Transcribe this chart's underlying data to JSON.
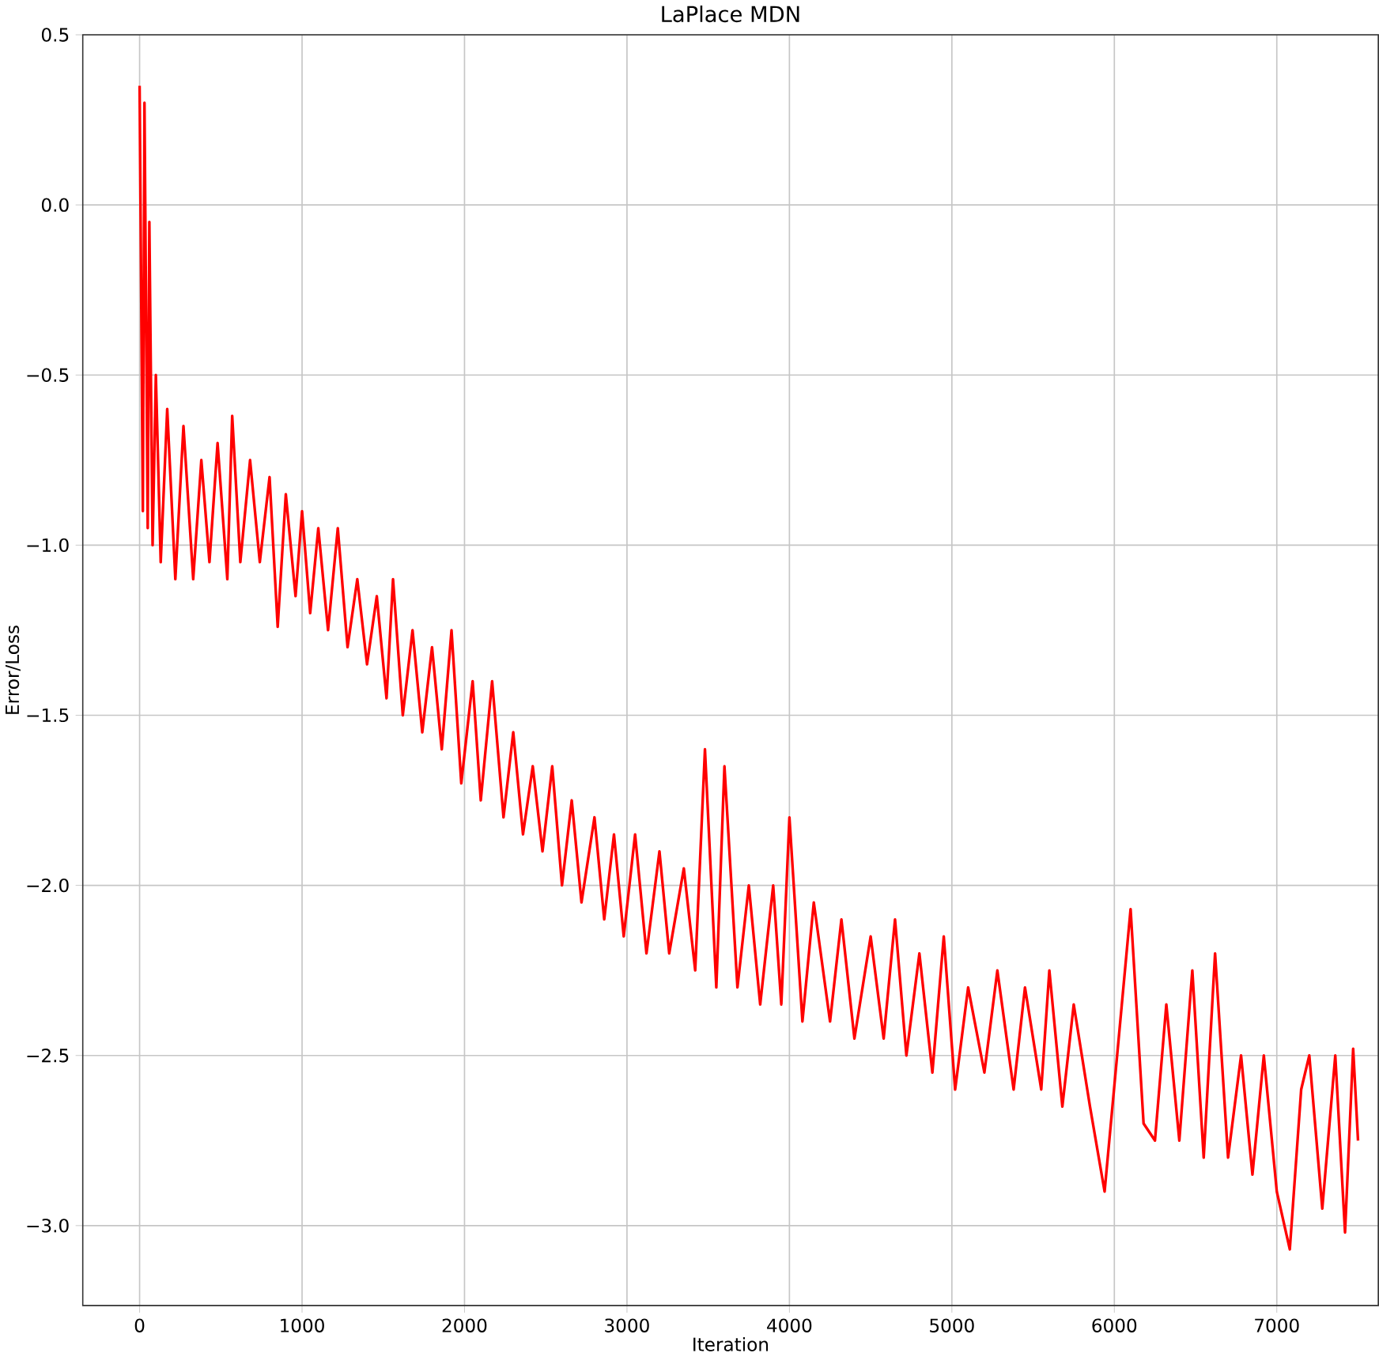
{
  "chart_data": {
    "type": "line",
    "title": "LaPlace MDN",
    "xlabel": "Iteration",
    "ylabel": "Error/Loss",
    "x": [
      0,
      20,
      30,
      50,
      60,
      80,
      100,
      130,
      170,
      220,
      270,
      330,
      380,
      430,
      480,
      540,
      570,
      620,
      680,
      740,
      800,
      850,
      900,
      960,
      1000,
      1050,
      1100,
      1160,
      1220,
      1280,
      1340,
      1400,
      1460,
      1520,
      1560,
      1620,
      1680,
      1740,
      1800,
      1860,
      1920,
      1980,
      2050,
      2100,
      2170,
      2240,
      2300,
      2360,
      2420,
      2480,
      2540,
      2600,
      2660,
      2720,
      2800,
      2860,
      2920,
      2980,
      3050,
      3120,
      3200,
      3260,
      3350,
      3420,
      3480,
      3550,
      3600,
      3680,
      3750,
      3820,
      3900,
      3950,
      4000,
      4080,
      4150,
      4250,
      4320,
      4400,
      4500,
      4580,
      4650,
      4720,
      4800,
      4880,
      4950,
      5020,
      5100,
      5200,
      5280,
      5380,
      5450,
      5550,
      5600,
      5680,
      5750,
      5850,
      5940,
      6100,
      6180,
      6250,
      6320,
      6400,
      6480,
      6550,
      6620,
      6700,
      6780,
      6850,
      6920,
      7000,
      7080,
      7150,
      7200,
      7280,
      7360,
      7420,
      7470,
      7500
    ],
    "series": [
      {
        "color": "#ff0000",
        "values": [
          0.35,
          -0.9,
          0.3,
          -0.95,
          -0.05,
          -1.0,
          -0.5,
          -1.05,
          -0.6,
          -1.1,
          -0.65,
          -1.1,
          -0.75,
          -1.05,
          -0.7,
          -1.1,
          -0.62,
          -1.05,
          -0.75,
          -1.05,
          -0.8,
          -1.24,
          -0.85,
          -1.15,
          -0.9,
          -1.2,
          -0.95,
          -1.25,
          -0.95,
          -1.3,
          -1.1,
          -1.35,
          -1.15,
          -1.45,
          -1.1,
          -1.5,
          -1.25,
          -1.55,
          -1.3,
          -1.6,
          -1.25,
          -1.7,
          -1.4,
          -1.75,
          -1.4,
          -1.8,
          -1.55,
          -1.85,
          -1.65,
          -1.9,
          -1.65,
          -2.0,
          -1.75,
          -2.05,
          -1.8,
          -2.1,
          -1.85,
          -2.15,
          -1.85,
          -2.2,
          -1.9,
          -2.2,
          -1.95,
          -2.25,
          -1.6,
          -2.3,
          -1.65,
          -2.3,
          -2.0,
          -2.35,
          -2.0,
          -2.35,
          -1.8,
          -2.4,
          -2.05,
          -2.4,
          -2.1,
          -2.45,
          -2.15,
          -2.45,
          -2.1,
          -2.5,
          -2.2,
          -2.55,
          -2.15,
          -2.6,
          -2.3,
          -2.55,
          -2.25,
          -2.6,
          -2.3,
          -2.6,
          -2.25,
          -2.65,
          -2.35,
          -2.65,
          -2.9,
          -2.07,
          -2.7,
          -2.75,
          -2.35,
          -2.75,
          -2.25,
          -2.8,
          -2.2,
          -2.8,
          -2.5,
          -2.85,
          -2.5,
          -2.9,
          -3.07,
          -2.6,
          -2.5,
          -2.95,
          -2.5,
          -3.02,
          -2.48,
          -2.75
        ]
      }
    ],
    "xlim": [
      -350,
      7625
    ],
    "ylim": [
      -3.235,
      0.5
    ],
    "xticks": [
      0,
      1000,
      2000,
      3000,
      4000,
      5000,
      6000,
      7000
    ],
    "yticks": [
      {
        "value": -3.0,
        "label": "−3.0"
      },
      {
        "value": -2.5,
        "label": "−2.5"
      },
      {
        "value": -2.0,
        "label": "−2.0"
      },
      {
        "value": -1.5,
        "label": "−1.5"
      },
      {
        "value": -1.0,
        "label": "−1.0"
      },
      {
        "value": -0.5,
        "label": "−0.5"
      },
      {
        "value": 0.0,
        "label": "0.0"
      },
      {
        "value": 0.5,
        "label": "0.5"
      }
    ],
    "grid": true,
    "line_style": "solid",
    "marker": "none"
  }
}
